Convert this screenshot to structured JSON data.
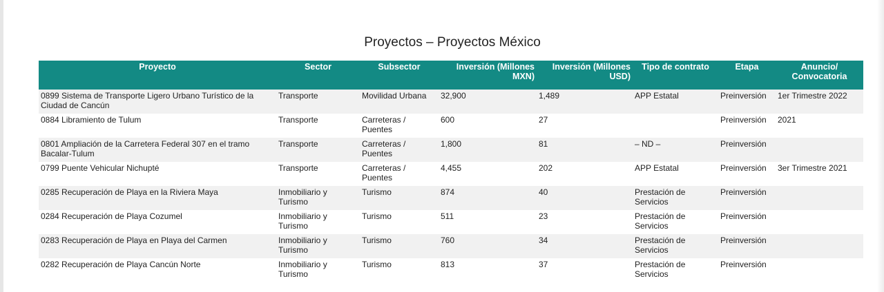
{
  "title": "Proyectos – Proyectos México",
  "columns": [
    "Proyecto",
    "Sector",
    "Subsector",
    "Inversión (Millones MXN)",
    "Inversión (Millones USD)",
    "Tipo de contrato",
    "Etapa",
    "Anuncio/ Convocatoria"
  ],
  "rows": [
    [
      "0899 Sistema de Transporte Ligero Urbano Turístico de la Ciudad de Cancún",
      "Transporte",
      "Movilidad Urbana",
      "32,900",
      "1,489",
      "APP Estatal",
      "Preinversión",
      "1er Trimestre 2022"
    ],
    [
      "0884 Libramiento de Tulum",
      "Transporte",
      "Carreteras / Puentes",
      "600",
      "27",
      "",
      "Preinversión",
      "2021"
    ],
    [
      "0801 Ampliación de la Carretera Federal 307 en el tramo Bacalar-Tulum",
      "Transporte",
      "Carreteras / Puentes",
      "1,800",
      "81",
      "– ND –",
      "Preinversión",
      ""
    ],
    [
      "0799 Puente Vehicular Nichupté",
      "Transporte",
      "Carreteras / Puentes",
      "4,455",
      "202",
      "APP Estatal",
      "Preinversión",
      "3er Trimestre 2021"
    ],
    [
      "0285 Recuperación de Playa en la Riviera Maya",
      "Inmobiliario y Turismo",
      "Turismo",
      "874",
      "40",
      "Prestación de Servicios",
      "Preinversión",
      ""
    ],
    [
      "0284 Recuperación de Playa Cozumel",
      "Inmobiliario y Turismo",
      "Turismo",
      "511",
      "23",
      "Prestación de Servicios",
      "Preinversión",
      ""
    ],
    [
      "0283 Recuperación de Playa en Playa del Carmen",
      "Inmobiliario y Turismo",
      "Turismo",
      "760",
      "34",
      "Prestación de Servicios",
      "Preinversión",
      ""
    ],
    [
      "0282 Recuperación de Playa Cancún Norte",
      "Inmobiliario y Turismo",
      "Turismo",
      "813",
      "37",
      "Prestación de Servicios",
      "Preinversión",
      ""
    ]
  ]
}
